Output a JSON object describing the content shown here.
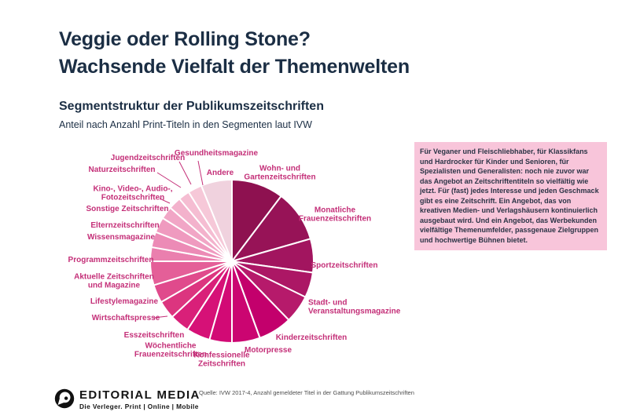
{
  "page": {
    "background": "#ffffff"
  },
  "header": {
    "title_line1": "Veggie oder Rolling Stone?",
    "title_line2": "Wachsende Vielfalt der Themenwelten",
    "subtitle": "Segmentstruktur der Publikumszeitschriften",
    "note": "Anteil nach Anzahl Print-Titeln in den Segmenten laut IVW",
    "title_color": "#1b2e44"
  },
  "highlight_box": {
    "text": "Für Veganer und Fleischliebhaber, für Klassikfans und Hardrocker für Kinder und Senioren, für Spezialisten und Generalisten: noch nie zuvor war das Angebot an Zeitschriftentiteln so vielfältig wie jetzt. Für (fast) jedes Interesse und jeden Geschmack gibt es eine Zeitschrift. Ein Angebot, das von kreativen Medien- und Verlagshäusern kontinuierlich ausgebaut wird. Und ein Angebot, das Werbekunden vielfältige Themenumfelder, passgenaue Zielgruppen und hochwertige Bühnen bietet.",
    "background": "#f8c5da",
    "text_color": "#2b3446"
  },
  "chart_data": {
    "type": "pie",
    "title": "Segmentstruktur der Publikumszeitschriften",
    "subtitle": "Anteil nach Anzahl Print-Titeln in den Segmenten laut IVW",
    "direction": "clockwise",
    "start_angle_deg": 0,
    "legend_position": "direct labels around pie",
    "label_color": "#c42f78",
    "slice_divider_color": "#ffffff",
    "segments": [
      {
        "label": "Wohn- und\nGartenzeitschriften",
        "deg": 37,
        "percent": 10.3,
        "color": "#8e1150"
      },
      {
        "label": "Monatliche\nFrauenzeitschriften",
        "deg": 37,
        "percent": 10.3,
        "color": "#971357"
      },
      {
        "label": "Sportzeitschriften",
        "deg": 24,
        "percent": 6.7,
        "color": "#a2155f"
      },
      {
        "label": "Stadt- und\nVeranstaltungsmagazine",
        "deg": 18,
        "percent": 5.0,
        "color": "#ac1765"
      },
      {
        "label": "Kinderzeitschriften",
        "deg": 20,
        "percent": 5.6,
        "color": "#b61a6b"
      },
      {
        "label": "Motorpresse",
        "deg": 24,
        "percent": 6.7,
        "color": "#c3006c"
      },
      {
        "label": "Konfessionelle\nZeitschriften",
        "deg": 20,
        "percent": 5.6,
        "color": "#cb0571"
      },
      {
        "label": "Wöchentliche\nFrauenzeitschriften",
        "deg": 16,
        "percent": 4.4,
        "color": "#d20a75"
      },
      {
        "label": "Esszeitschriften",
        "deg": 17,
        "percent": 4.7,
        "color": "#d61177"
      },
      {
        "label": "Wirtschaftspresse",
        "deg": 14,
        "percent": 3.9,
        "color": "#d92079"
      },
      {
        "label": "Lifestylemagazine",
        "deg": 13,
        "percent": 3.6,
        "color": "#dc357f"
      },
      {
        "label": "Aktuelle Zeitschriften\nund Magazine",
        "deg": 13,
        "percent": 3.6,
        "color": "#e04a8c"
      },
      {
        "label": "Programmzeitschriften",
        "deg": 17,
        "percent": 4.7,
        "color": "#e45f98"
      },
      {
        "label": "Wissensmagazine",
        "deg": 10,
        "percent": 2.8,
        "color": "#ea7fae"
      },
      {
        "label": "Elternzeitschriften",
        "deg": 11,
        "percent": 3.1,
        "color": "#ec8bb6"
      },
      {
        "label": "Sonstige Zeitschriften",
        "deg": 11,
        "percent": 3.1,
        "color": "#ef9abf"
      },
      {
        "label": "Kino-, Video-, Audio-,\nFotozeitschriften",
        "deg": 9,
        "percent": 2.5,
        "color": "#f1a6c6"
      },
      {
        "label": "Naturzeitschriften",
        "deg": 9,
        "percent": 2.5,
        "color": "#f3b2cc"
      },
      {
        "label": "Jugendzeitschriften",
        "deg": 8,
        "percent": 2.2,
        "color": "#f5bdd2"
      },
      {
        "label": "Gesundheitsmagazine",
        "deg": 10,
        "percent": 2.8,
        "color": "#f6c8d8"
      },
      {
        "label": "Andere",
        "deg": 22,
        "percent": 6.1,
        "color": "#f0d2de"
      }
    ]
  },
  "footer": {
    "logo_title": "EDITORIAL MEDIA",
    "logo_tagline": "Die Verleger. Print | Online | Mobile",
    "source": "Quelle: IVW 2017-4, Anzahl gemeldeter Titel in der Gattung Publikumszeitschriften"
  }
}
